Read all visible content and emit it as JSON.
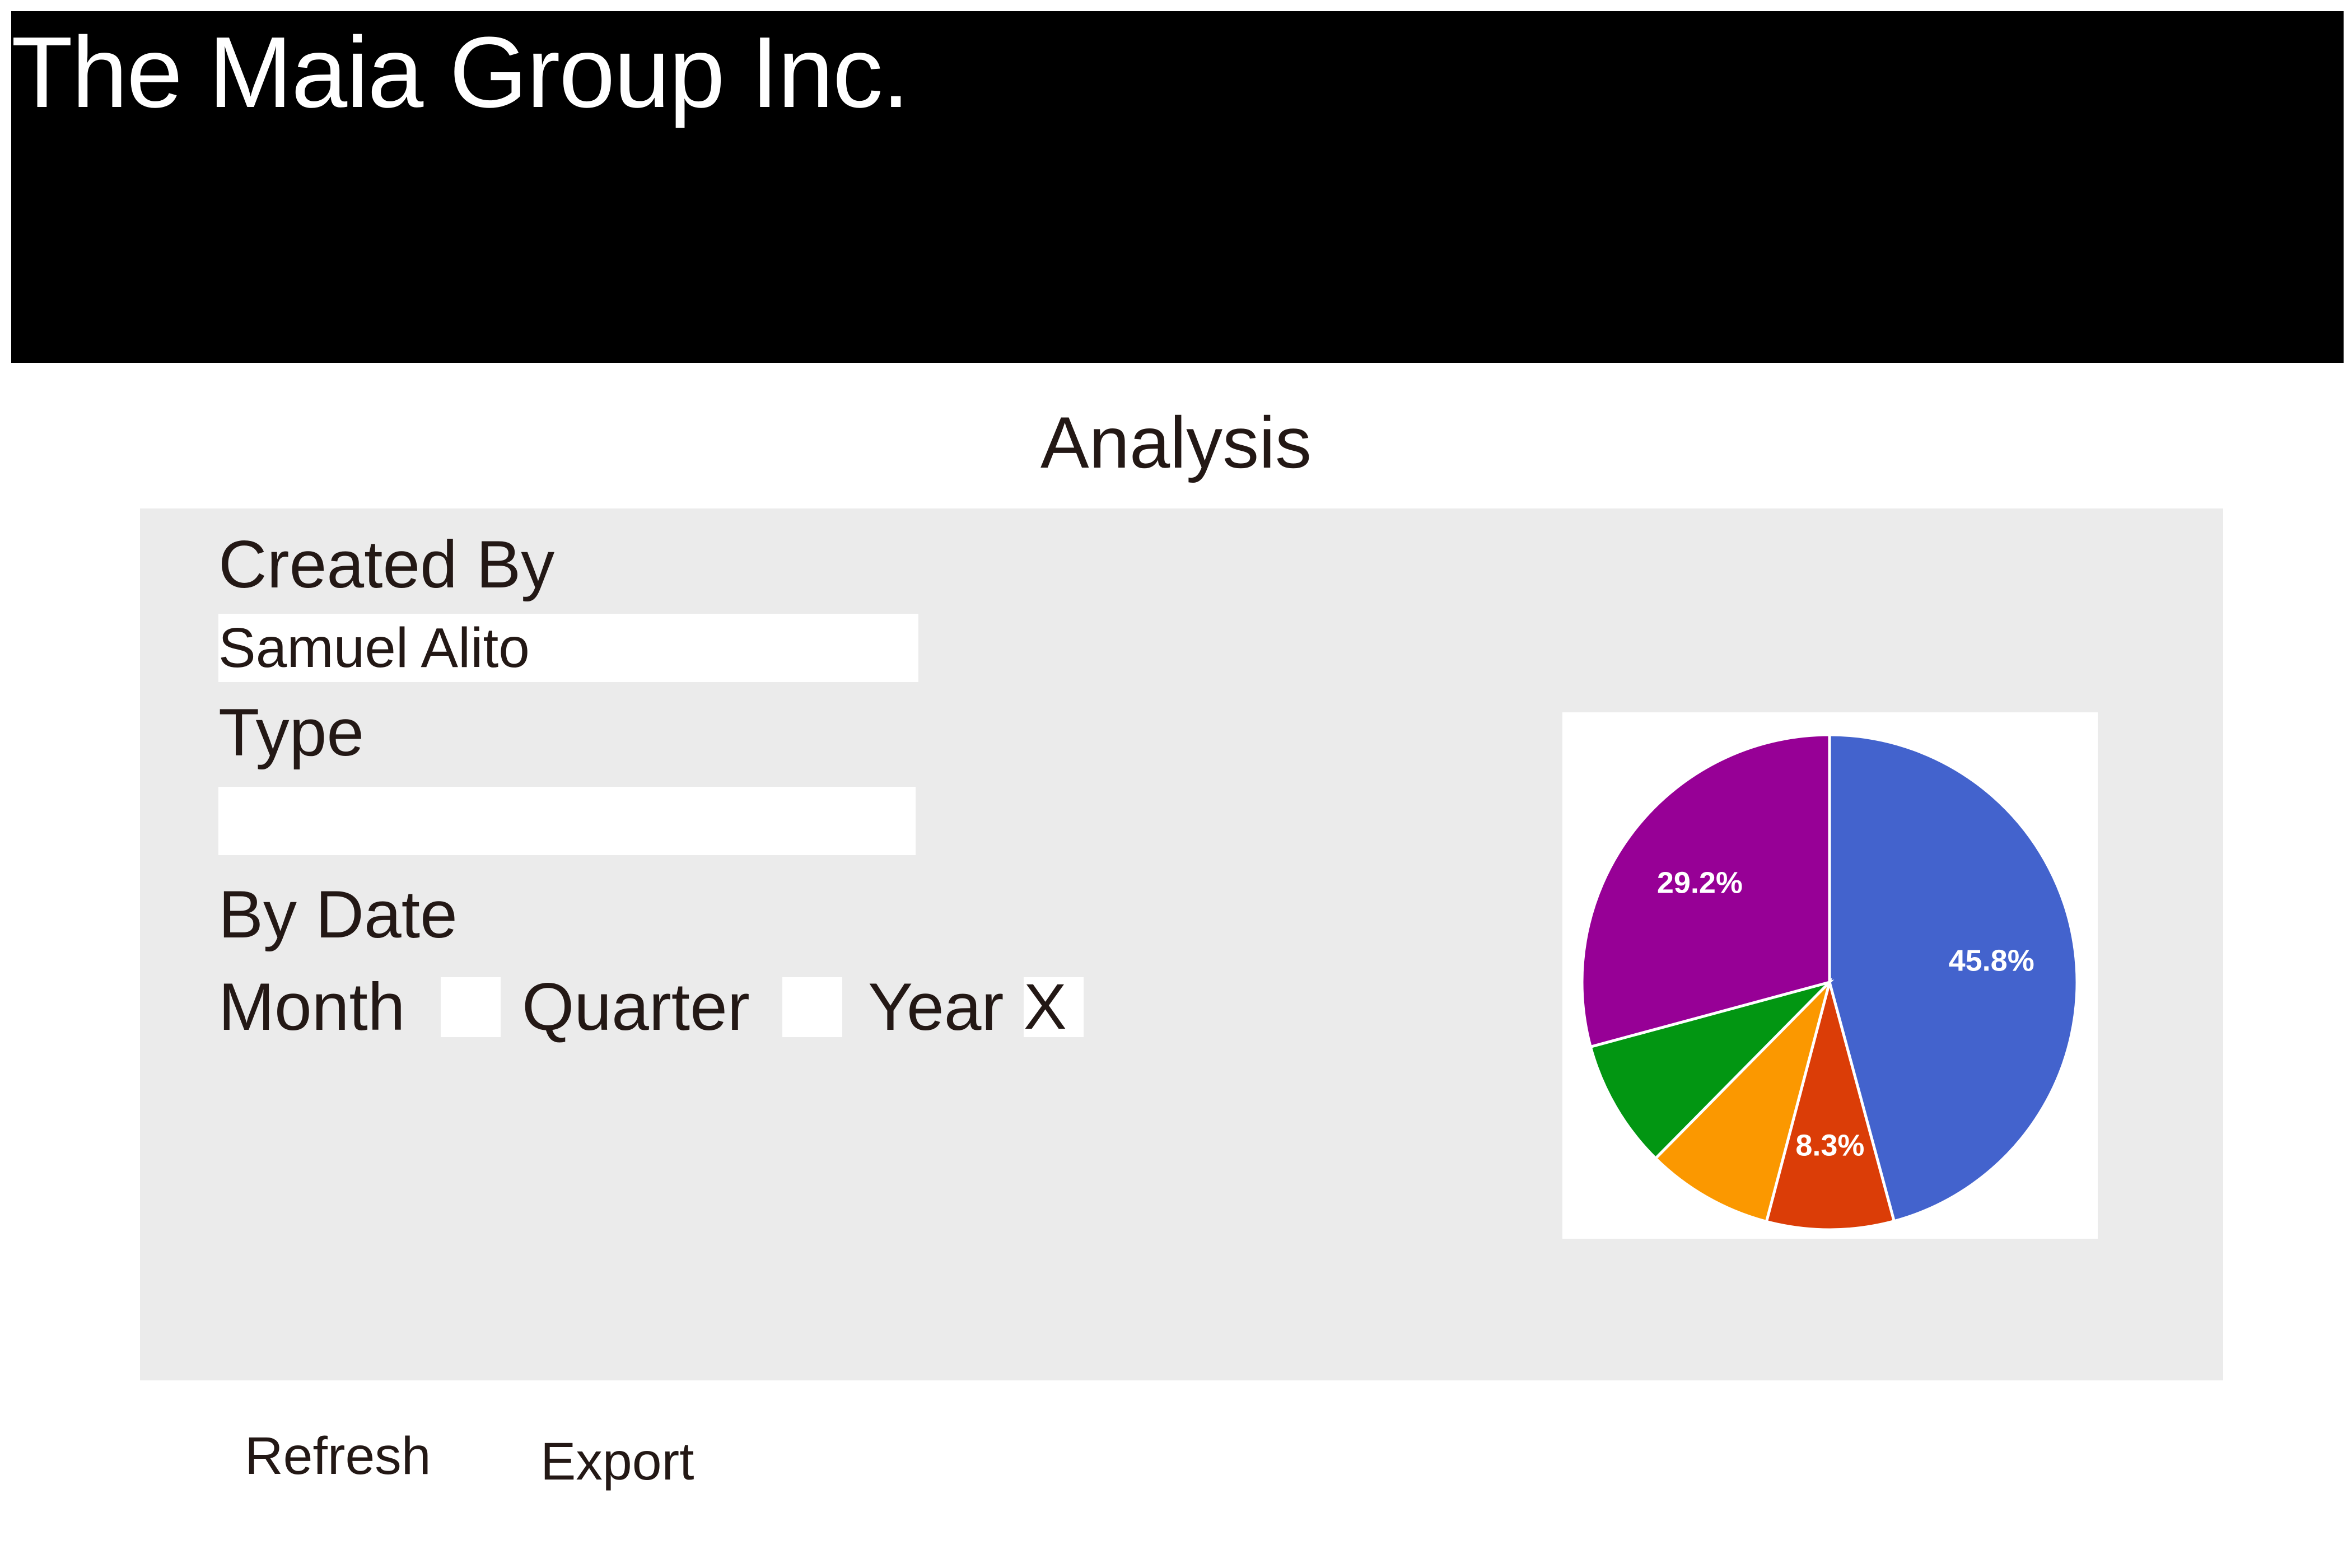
{
  "header": {
    "company_name": "The Maia Group Inc."
  },
  "page": {
    "title": "Analysis"
  },
  "form": {
    "created_by_label": "Created By",
    "created_by_value": "Samuel Alito",
    "type_label": "Type",
    "type_value": "",
    "by_date_label": "By Date",
    "month_label": "Month",
    "month_mark": "",
    "quarter_label": "Quarter",
    "quarter_mark": "",
    "year_label": "Year",
    "year_mark": "X"
  },
  "actions": {
    "refresh_label": "Refresh",
    "export_label": "Export"
  },
  "chart_data": {
    "type": "pie",
    "slices": [
      {
        "value": 45.8,
        "color": "#4363cd",
        "label": "45.8%"
      },
      {
        "value": 8.3,
        "color": "#db3d07",
        "label": "8.3%"
      },
      {
        "value": 8.3,
        "color": "#fb9800",
        "label": ""
      },
      {
        "value": 8.4,
        "color": "#029612",
        "label": ""
      },
      {
        "value": 29.2,
        "color": "#970096",
        "label": "29.2%"
      }
    ]
  }
}
